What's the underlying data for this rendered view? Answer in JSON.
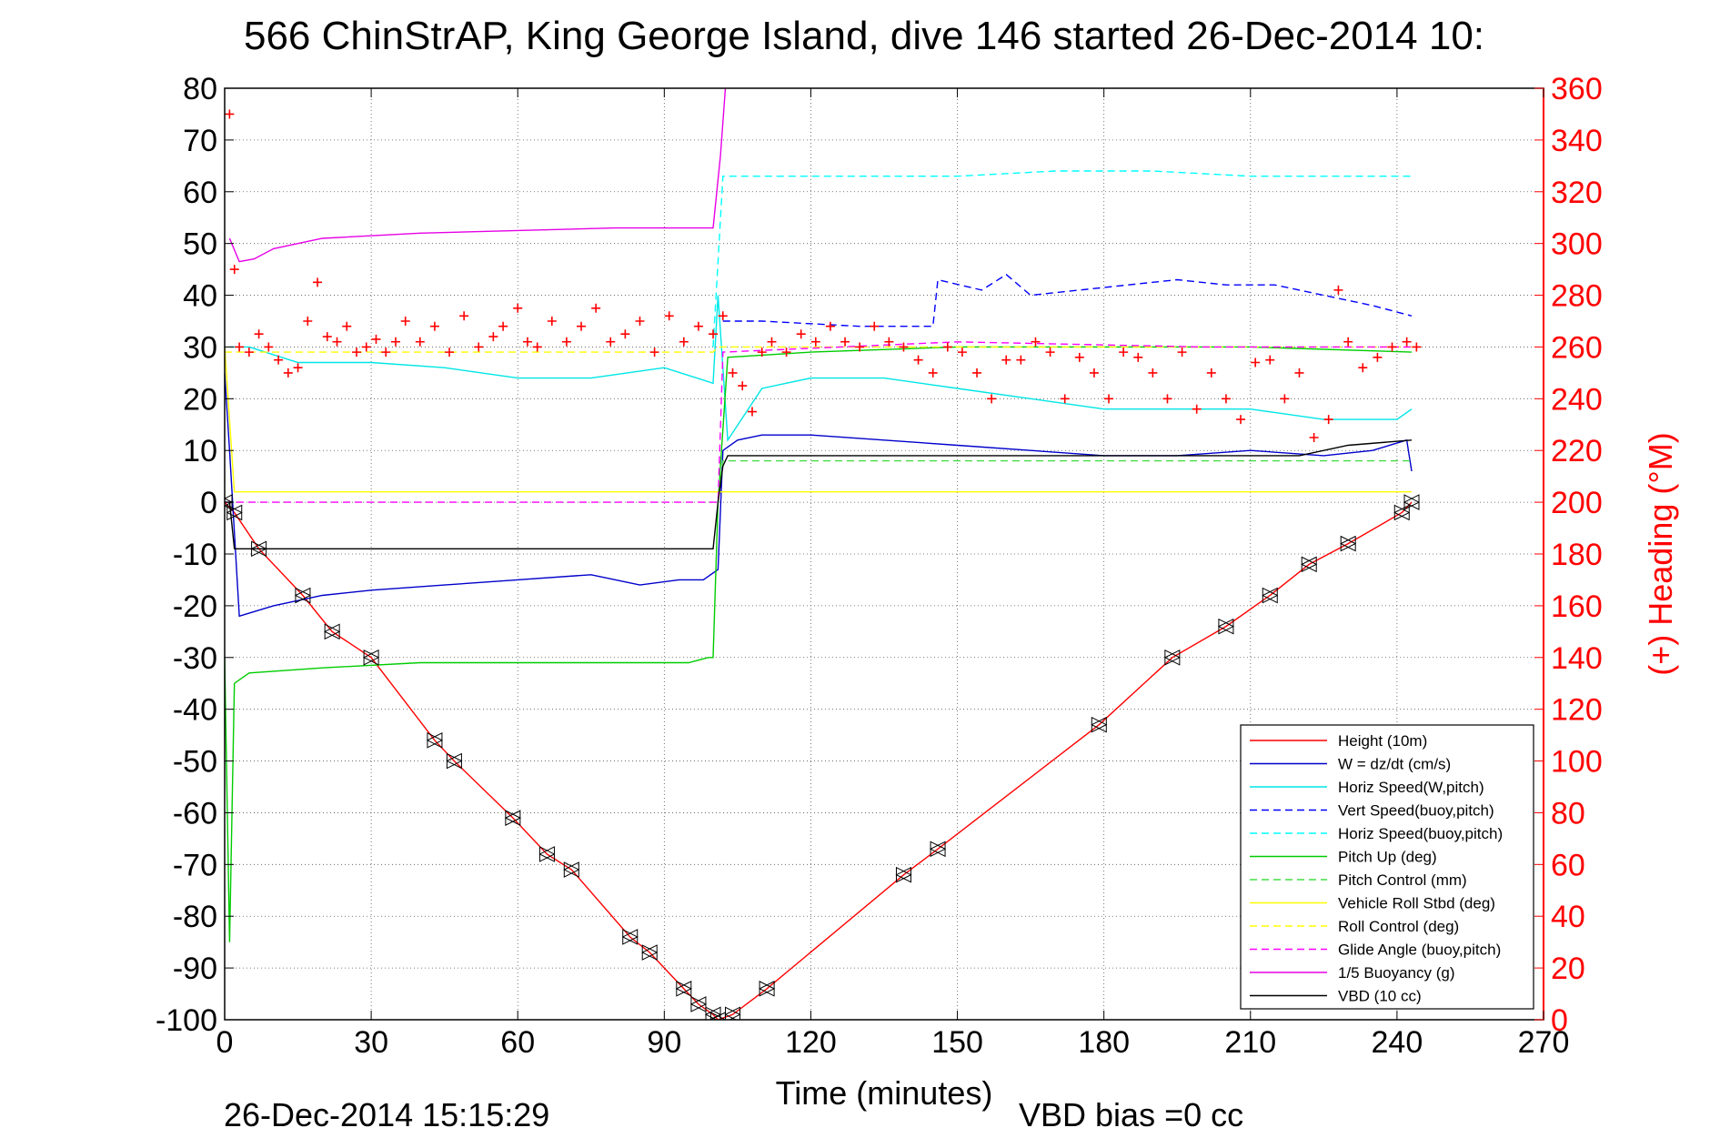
{
  "chart_data": {
    "type": "line",
    "title": "566 ChinStrAP, King George Island, dive 146 started 26-Dec-2014 10:",
    "xlabel": "Time (minutes)",
    "ylabel": "",
    "y2label": "(+) Heading (°M)",
    "xlim": [
      0,
      270
    ],
    "ylim": [
      -100,
      80
    ],
    "y2lim": [
      0,
      360
    ],
    "xticks": [
      0,
      30,
      60,
      90,
      120,
      150,
      180,
      210,
      240,
      270
    ],
    "yticks": [
      -100,
      -90,
      -80,
      -70,
      -60,
      -50,
      -40,
      -30,
      -20,
      -10,
      0,
      10,
      20,
      30,
      40,
      50,
      60,
      70,
      80
    ],
    "y2ticks": [
      0,
      20,
      40,
      60,
      80,
      100,
      120,
      140,
      160,
      180,
      200,
      220,
      240,
      260,
      280,
      300,
      320,
      340,
      360
    ],
    "grid": true,
    "legend_position": "bottom-right",
    "footer_left": "26-Dec-2014 15:15:29",
    "footer_right": "VBD bias =0 cc",
    "series": [
      {
        "name": "Height (10m)",
        "color": "#ff0000",
        "style": "solid",
        "x": [
          0,
          2,
          7,
          16,
          22,
          30,
          43,
          47,
          59,
          66,
          71,
          83,
          87,
          94,
          97,
          100,
          101,
          104,
          111,
          139,
          146,
          179,
          194,
          205,
          214,
          222,
          230,
          241,
          243
        ],
        "y": [
          0,
          -2,
          -9,
          -18,
          -25,
          -30,
          -46,
          -50,
          -61,
          -68,
          -71,
          -84,
          -87,
          -94,
          -97,
          -99,
          -100,
          -99,
          -94,
          -72,
          -67,
          -43,
          -30,
          -24,
          -18,
          -12,
          -8,
          -2,
          0
        ]
      },
      {
        "name": "W = dz/dt (cm/s)",
        "color": "#0000cc",
        "style": "solid",
        "x": [
          0,
          1,
          3,
          10,
          20,
          30,
          45,
          60,
          75,
          85,
          93,
          98,
          101,
          102,
          105,
          110,
          120,
          135,
          150,
          165,
          180,
          195,
          210,
          225,
          235,
          242,
          243
        ],
        "y": [
          25,
          10,
          -22,
          -20,
          -18,
          -17,
          -16,
          -15,
          -14,
          -16,
          -15,
          -15,
          -13,
          10,
          12,
          13,
          13,
          12,
          11,
          10,
          9,
          9,
          10,
          9,
          10,
          12,
          6
        ]
      },
      {
        "name": "Horiz Speed(W,pitch)",
        "color": "#00e5e5",
        "style": "solid",
        "x": [
          1,
          5,
          15,
          30,
          45,
          60,
          75,
          90,
          100,
          101,
          103,
          110,
          120,
          135,
          150,
          165,
          180,
          195,
          210,
          225,
          240,
          243
        ],
        "y": [
          30,
          30,
          27,
          27,
          26,
          24,
          24,
          26,
          23,
          40,
          12,
          22,
          24,
          24,
          22,
          20,
          18,
          18,
          18,
          16,
          16,
          18
        ]
      },
      {
        "name": "Vert Speed(buoy,pitch)",
        "color": "#0000ff",
        "style": "dashed",
        "x": [
          102,
          110,
          130,
          145,
          146,
          155,
          160,
          165,
          175,
          185,
          195,
          205,
          215,
          225,
          235,
          243
        ],
        "y": [
          35,
          35,
          34,
          34,
          43,
          41,
          44,
          40,
          41,
          42,
          43,
          42,
          42,
          40,
          38,
          36
        ]
      },
      {
        "name": "Horiz Speed(buoy,pitch)",
        "color": "#00ffff",
        "style": "dashed",
        "x": [
          100,
          102,
          110,
          130,
          150,
          170,
          190,
          210,
          230,
          243
        ],
        "y": [
          30,
          63,
          63,
          63,
          63,
          64,
          64,
          63,
          63,
          63
        ]
      },
      {
        "name": "Pitch Up (deg)",
        "color": "#00cc00",
        "style": "solid",
        "x": [
          0,
          1,
          2,
          5,
          20,
          40,
          60,
          80,
          95,
          99,
          100,
          101,
          103,
          120,
          150,
          180,
          210,
          243
        ],
        "y": [
          -30,
          -85,
          -35,
          -33,
          -32,
          -31,
          -31,
          -31,
          -31,
          -30,
          -30,
          0,
          28,
          29,
          30,
          30,
          30,
          29
        ]
      },
      {
        "name": "Pitch Control (mm)",
        "color": "#44dd44",
        "style": "dashed",
        "x": [
          101,
          102,
          110,
          150,
          200,
          243
        ],
        "y": [
          0,
          8,
          8,
          8,
          8,
          8
        ]
      },
      {
        "name": "Vehicle Roll Stbd (deg)",
        "color": "#ffff00",
        "style": "solid",
        "x": [
          0,
          2,
          30,
          60,
          90,
          100,
          103,
          130,
          160,
          200,
          243
        ],
        "y": [
          30,
          2,
          2,
          2,
          2,
          2,
          2,
          2,
          2,
          2,
          2
        ]
      },
      {
        "name": "Roll Control (deg)",
        "color": "#ffff00",
        "style": "dashed",
        "x": [
          0,
          100,
          101,
          243
        ],
        "y": [
          29,
          29,
          30,
          30
        ]
      },
      {
        "name": "Glide Angle (buoy,pitch)",
        "color": "#ff00ff",
        "style": "dashed",
        "x": [
          0,
          101,
          102,
          150,
          200,
          243
        ],
        "y": [
          0,
          0,
          29,
          31,
          30,
          30
        ]
      },
      {
        "name": "1/5 Buoyancy (g)",
        "color": "#e600e6",
        "style": "solid",
        "x": [
          1,
          3,
          6,
          10,
          20,
          40,
          60,
          80,
          95,
          100,
          101.5,
          102.5
        ],
        "y": [
          51,
          46.5,
          47,
          49,
          51,
          52,
          52.5,
          53,
          53,
          53,
          67,
          80
        ]
      },
      {
        "name": "VBD (10 cc)",
        "color": "#000000",
        "style": "solid",
        "x": [
          0,
          1,
          2,
          20,
          40,
          60,
          80,
          100,
          101,
          102,
          103,
          130,
          160,
          190,
          220,
          230,
          243
        ],
        "y": [
          0,
          0,
          -9,
          -9,
          -9,
          -9,
          -9,
          -9,
          0,
          7,
          9,
          9,
          9,
          9,
          9,
          11,
          12
        ]
      }
    ],
    "heading_series": {
      "name": "(+) Heading (°M)",
      "color": "#ff0000",
      "marker": "+",
      "axis": "right",
      "x": [
        1,
        2,
        3,
        5,
        7,
        9,
        11,
        13,
        15,
        17,
        19,
        21,
        23,
        25,
        27,
        29,
        31,
        33,
        35,
        37,
        40,
        43,
        46,
        49,
        52,
        55,
        57,
        60,
        62,
        64,
        67,
        70,
        73,
        76,
        79,
        82,
        85,
        88,
        91,
        94,
        97,
        100,
        102,
        104,
        106,
        108,
        110,
        112,
        115,
        118,
        121,
        124,
        127,
        130,
        133,
        136,
        139,
        142,
        145,
        148,
        151,
        154,
        157,
        160,
        163,
        166,
        169,
        172,
        175,
        178,
        181,
        184,
        187,
        190,
        193,
        196,
        199,
        202,
        205,
        208,
        211,
        214,
        217,
        220,
        223,
        226,
        228,
        230,
        233,
        236,
        239,
        242,
        244
      ],
      "y": [
        350,
        290,
        260,
        258,
        265,
        260,
        255,
        250,
        252,
        270,
        285,
        264,
        262,
        268,
        258,
        260,
        263,
        258,
        262,
        270,
        262,
        268,
        258,
        272,
        260,
        264,
        268,
        275,
        262,
        260,
        270,
        262,
        268,
        275,
        262,
        265,
        270,
        258,
        272,
        262,
        268,
        265,
        272,
        250,
        245,
        235,
        258,
        262,
        258,
        265,
        262,
        268,
        262,
        260,
        268,
        262,
        260,
        255,
        250,
        260,
        258,
        250,
        240,
        255,
        255,
        262,
        258,
        240,
        256,
        250,
        240,
        258,
        256,
        250,
        240,
        258,
        236,
        250,
        240,
        232,
        254,
        255,
        240,
        250,
        225,
        232,
        282,
        262,
        252,
        256,
        260,
        262,
        260
      ]
    }
  }
}
